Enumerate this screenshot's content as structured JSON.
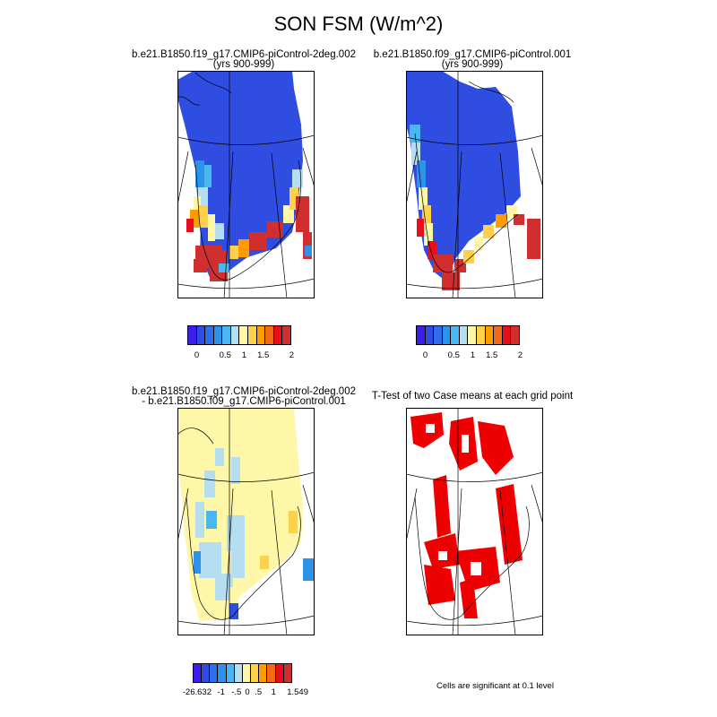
{
  "figure": {
    "title": "SON FSM (W/m^2)",
    "note": "Cells are significant at 0.1 level"
  },
  "panels": [
    {
      "id": "case1",
      "title_line1": "b.e21.B1850.f19_g17.CMIP6-piControl-2deg.002",
      "title_line2": "(yrs 900-999)"
    },
    {
      "id": "case2",
      "title_line1": "b.e21.B1850.f09_g17.CMIP6-piControl.001",
      "title_line2": "(yrs 900-999)"
    },
    {
      "id": "difference",
      "title_line1": "b.e21.B1850.f19_g17.CMIP6-piControl-2deg.002",
      "title_line2": "- b.e21.B1850.f09_g17.CMIP6-piControl.001"
    },
    {
      "id": "ttest",
      "title_line1": "T-Test of two Case means at each grid point",
      "title_line2": ""
    }
  ],
  "colorbars": {
    "fsm": {
      "colors": [
        "#3b1ee8",
        "#2f4de0",
        "#2f6ee8",
        "#2d93ea",
        "#49b8f0",
        "#b5def0",
        "#fff7a8",
        "#ffd04a",
        "#ff9c00",
        "#f06a1a",
        "#e80f1b",
        "#cf2f2f"
      ],
      "tick_labels": [
        "0",
        "0.5",
        "1",
        "1.5",
        "2"
      ]
    },
    "diff": {
      "colors": [
        "#3b1ee8",
        "#2f4de0",
        "#2f6ee8",
        "#2d93ea",
        "#49b8f0",
        "#b5def0",
        "#fff7a8",
        "#ffd04a",
        "#ff9c00",
        "#f06a1a",
        "#e80f1b",
        "#cf2f2f"
      ],
      "tick_labels": [
        "-26.632",
        "-1",
        "-.5",
        "0",
        ".5",
        "1",
        "1.549"
      ]
    }
  },
  "colors": {
    "deep_blue": "#2f4de0",
    "significant": "#ee0000",
    "diff_background": "#fff7a8"
  }
}
